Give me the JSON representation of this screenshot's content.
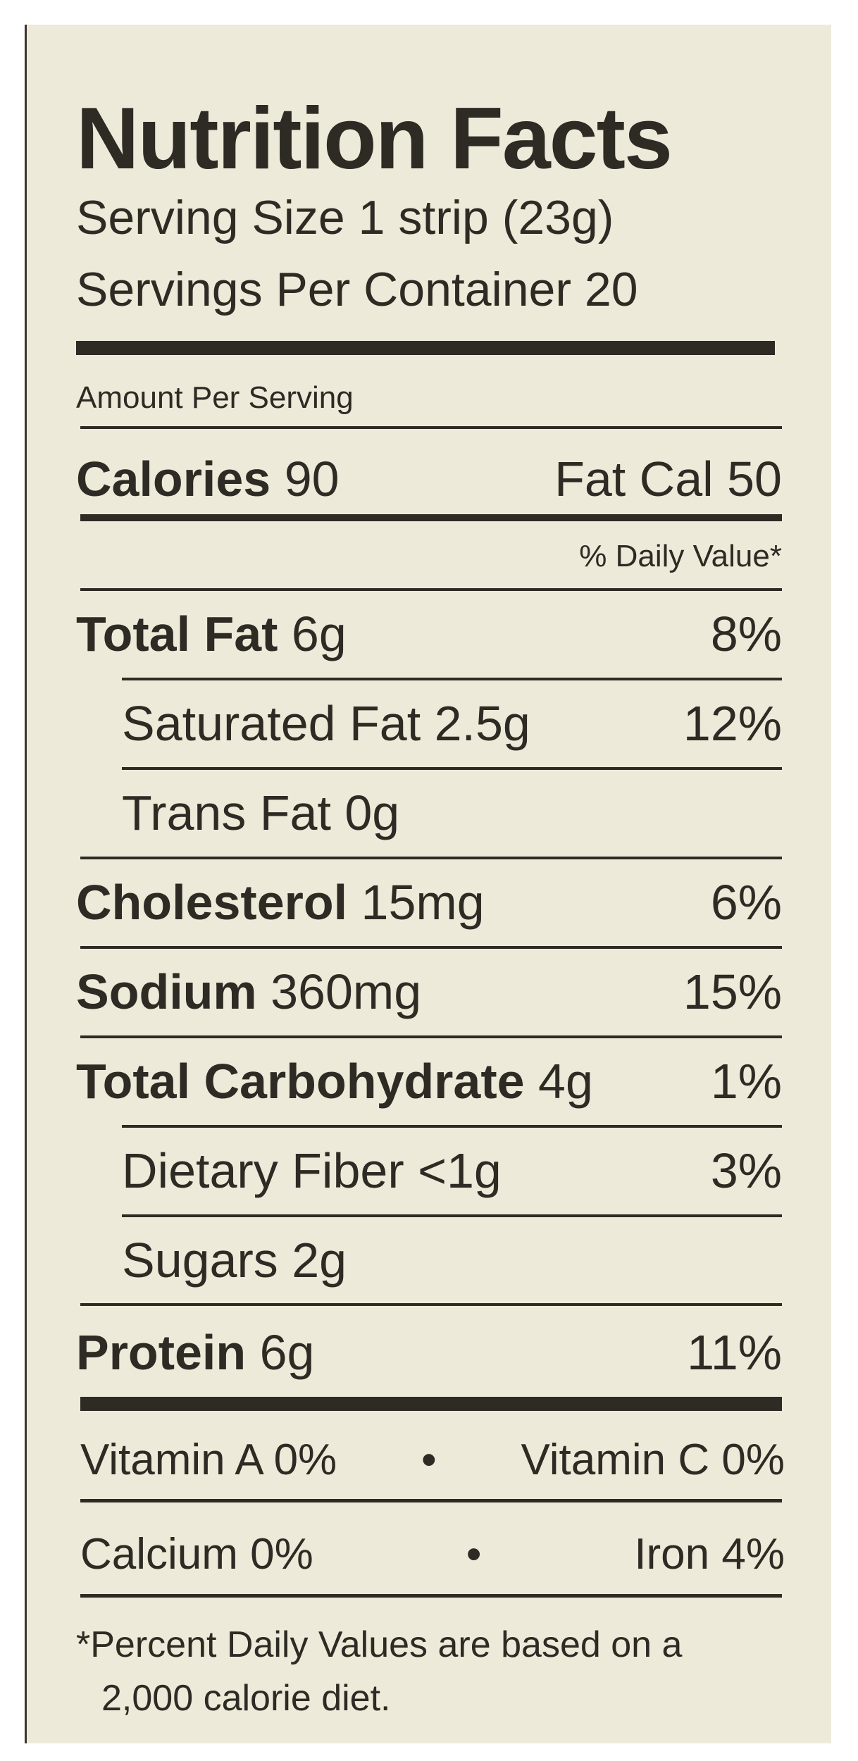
{
  "title": "Nutrition Facts",
  "serving_size": "Serving Size 1 strip (23g)",
  "servings_per_container": "Servings Per Container 20",
  "amount_per_serving": "Amount Per Serving",
  "calories": {
    "label": "Calories",
    "value": "90",
    "fat_cal": "Fat Cal 50"
  },
  "daily_value_header": "% Daily Value*",
  "nutrients": [
    {
      "label": "Total Fat",
      "amount": "6g",
      "dv": "8%"
    },
    {
      "label": "Saturated Fat",
      "amount": "2.5g",
      "dv": "12%"
    },
    {
      "label": "Trans Fat",
      "amount": "0g",
      "dv": ""
    },
    {
      "label": "Cholesterol",
      "amount": "15mg",
      "dv": "6%"
    },
    {
      "label": "Sodium",
      "amount": "360mg",
      "dv": "15%"
    },
    {
      "label": "Total Carbohydrate",
      "amount": "4g",
      "dv": "1%"
    },
    {
      "label": "Dietary Fiber",
      "amount": "<1g",
      "dv": "3%"
    },
    {
      "label": "Sugars",
      "amount": "2g",
      "dv": ""
    },
    {
      "label": "Protein",
      "amount": "6g",
      "dv": "11%"
    }
  ],
  "vitamins": {
    "vitamin_a": "Vitamin A 0%",
    "vitamin_c": "Vitamin C 0%",
    "calcium": "Calcium 0%",
    "iron": "Iron 4%",
    "separator": "•"
  },
  "footnote": {
    "line1": "*Percent Daily Values are based on a",
    "line2": "2,000 calorie diet."
  }
}
